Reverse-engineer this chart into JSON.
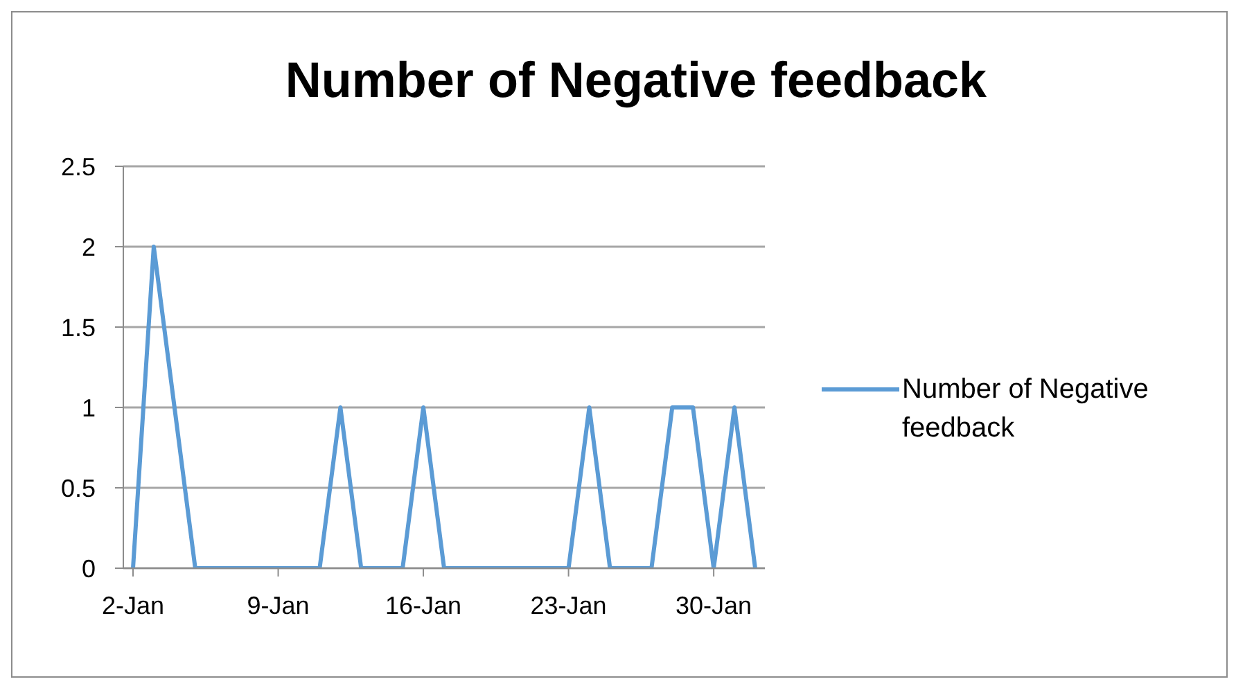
{
  "chart_data": {
    "type": "line",
    "title": "Number of Negative feedback",
    "categories": [
      "2-Jan",
      null,
      null,
      null,
      null,
      null,
      null,
      "9-Jan",
      null,
      null,
      null,
      null,
      null,
      null,
      "16-Jan",
      null,
      null,
      null,
      null,
      null,
      null,
      "23-Jan",
      null,
      null,
      null,
      null,
      null,
      null,
      "30-Jan",
      null,
      null
    ],
    "series": [
      {
        "name": "Number of Negative feedback",
        "color": "#5b9bd5",
        "values": [
          0,
          2,
          1,
          0,
          0,
          0,
          0,
          0,
          0,
          0,
          1,
          0,
          0,
          0,
          1,
          0,
          0,
          0,
          0,
          0,
          0,
          0,
          1,
          0,
          0,
          0,
          1,
          1,
          0,
          1,
          0
        ]
      }
    ],
    "ylim": [
      0,
      2.5
    ],
    "yticks": [
      0,
      0.5,
      1,
      1.5,
      2,
      2.5
    ],
    "grid": "y",
    "legend": "right",
    "marker": "none",
    "line_style": "solid"
  }
}
